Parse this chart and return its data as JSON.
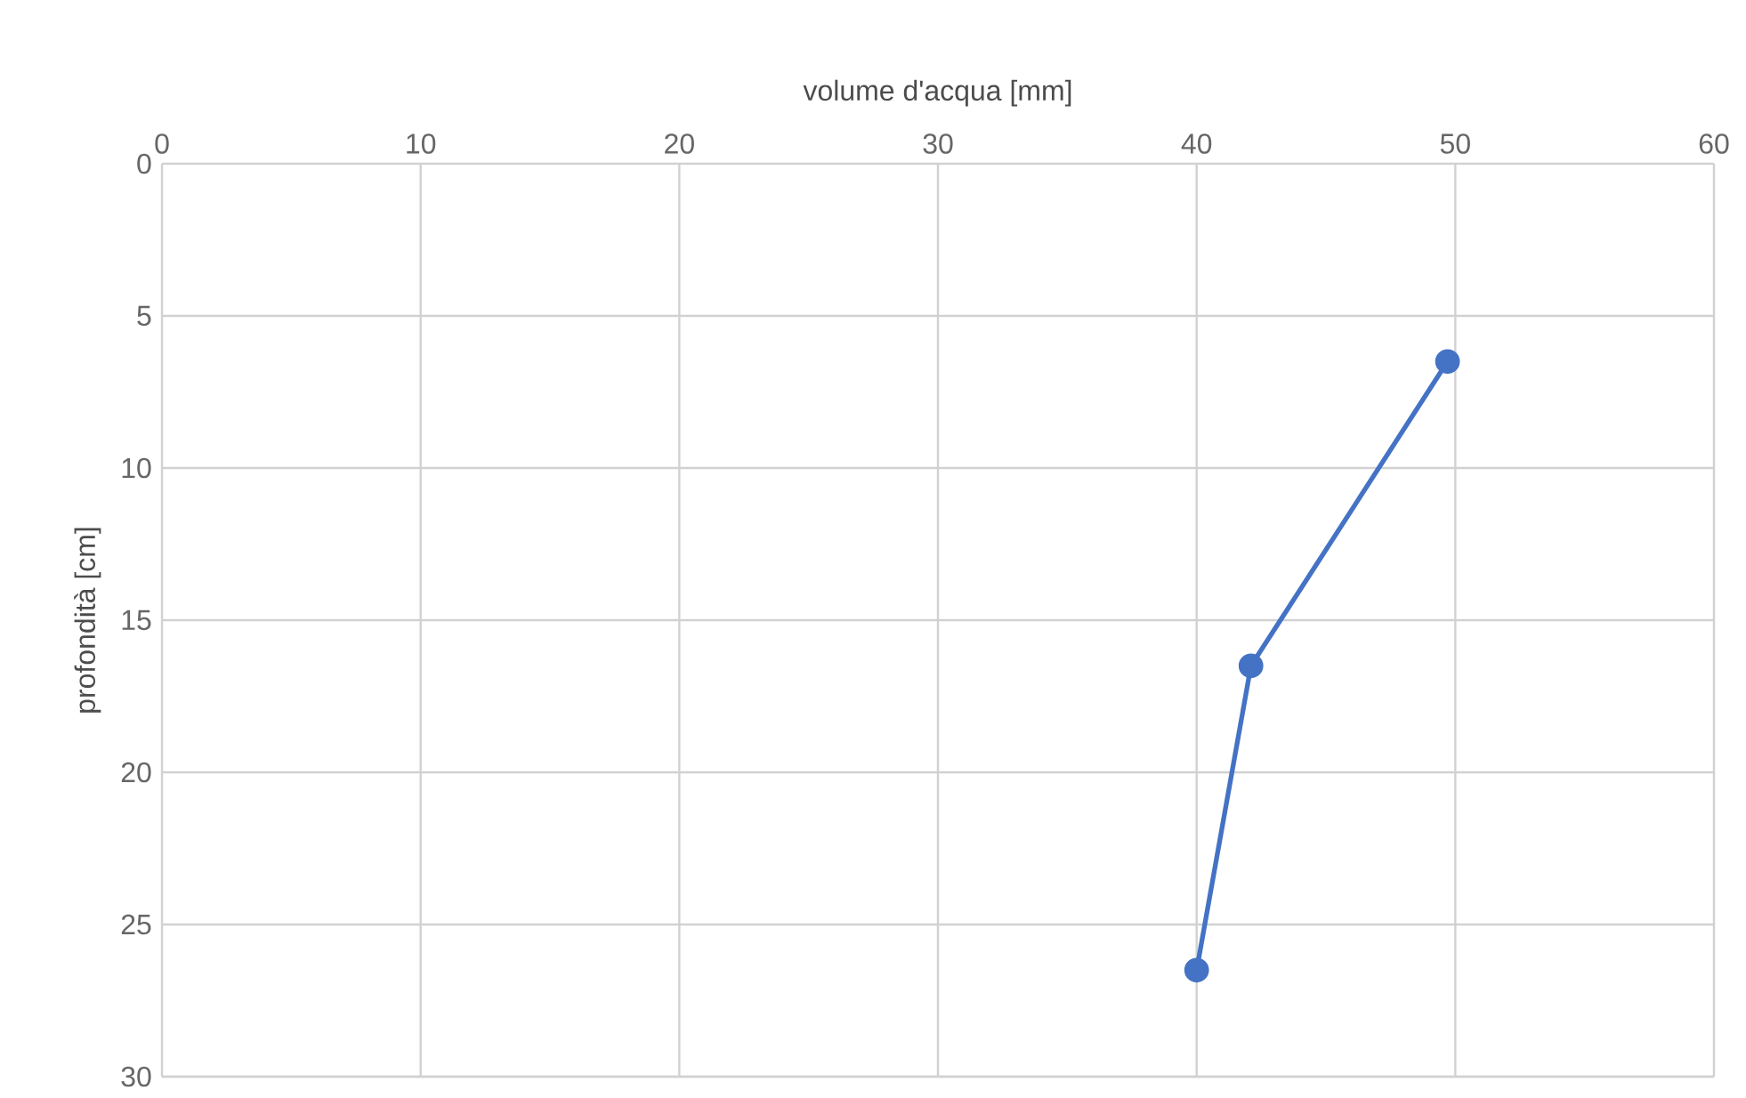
{
  "chart_data": {
    "type": "line",
    "xlabel": "volume d'acqua [mm]",
    "ylabel": "profondità [cm]",
    "x": [
      49.7,
      42.1,
      40
    ],
    "series": [
      {
        "color": "#4472c4",
        "values": [
          6.5,
          16.5,
          26.5
        ]
      }
    ],
    "xlim": [
      0,
      60
    ],
    "xticks": [
      0,
      10,
      20,
      30,
      40,
      50,
      60
    ],
    "ylim": [
      30,
      0
    ],
    "yticks": [
      0,
      5,
      10,
      15,
      20,
      25,
      30
    ],
    "grid": true,
    "marker": "circle",
    "line_style": "solid"
  }
}
